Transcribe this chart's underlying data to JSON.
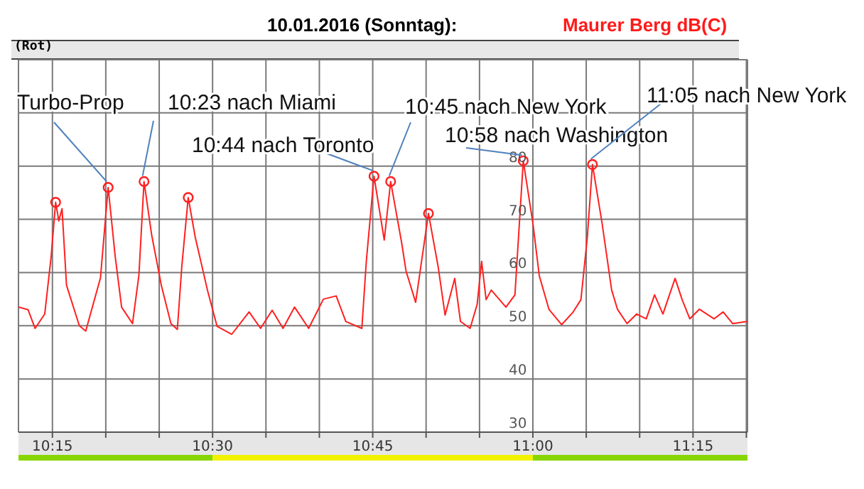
{
  "chart_data": {
    "type": "line",
    "title": "10.01.2016 (Sonntag):",
    "subtitle": "Maurer Berg dB(C)",
    "xlim": [
      10.197,
      11.335
    ],
    "xticks": [
      {
        "value": 10.25,
        "label": "10:15"
      },
      {
        "value": 10.3333,
        "label": null
      },
      {
        "value": 10.4167,
        "label": null
      },
      {
        "value": 10.5,
        "label": "10:30"
      },
      {
        "value": 10.5833,
        "label": null
      },
      {
        "value": 10.6667,
        "label": null
      },
      {
        "value": 10.75,
        "label": "10:45"
      },
      {
        "value": 10.8333,
        "label": null
      },
      {
        "value": 10.9167,
        "label": null
      },
      {
        "value": 11,
        "label": "11:00"
      },
      {
        "value": 11.0833,
        "label": null
      },
      {
        "value": 11.1667,
        "label": null
      },
      {
        "value": 11.25,
        "label": "11:15"
      },
      {
        "value": 11.3333,
        "label": null
      }
    ],
    "ylim": [
      30,
      100
    ],
    "yticks": [
      30,
      40,
      50,
      60,
      70,
      80,
      {
        "value": 90,
        "label": null
      },
      {
        "value": 100,
        "label": null
      }
    ],
    "grid": true,
    "legend": false,
    "marker": "none",
    "line_style": "solid",
    "series": [
      {
        "type": "line",
        "color": "#ff2020",
        "x": [
          10.197,
          10.212,
          10.223,
          10.238,
          10.248,
          10.255,
          10.26,
          10.265,
          10.272,
          10.292,
          10.302,
          10.325,
          10.337,
          10.348,
          10.358,
          10.375,
          10.385,
          10.393,
          10.405,
          10.42,
          10.435,
          10.445,
          10.452,
          10.462,
          10.473,
          10.492,
          10.507,
          10.53,
          10.557,
          10.575,
          10.593,
          10.61,
          10.628,
          10.65,
          10.673,
          10.693,
          10.708,
          10.733,
          10.74,
          10.752,
          10.768,
          10.778,
          10.795,
          10.802,
          10.817,
          10.837,
          10.852,
          10.863,
          10.878,
          10.887,
          10.902,
          10.913,
          10.92,
          10.927,
          10.935,
          10.958,
          10.972,
          10.985,
          11.0,
          11.01,
          11.025,
          11.045,
          11.063,
          11.075,
          11.085,
          11.093,
          11.108,
          11.123,
          11.132,
          11.147,
          11.162,
          11.177,
          11.19,
          11.203,
          11.222,
          11.233,
          11.245,
          11.26,
          11.283,
          11.297,
          11.312,
          11.335
        ],
        "values": [
          53.5,
          53,
          49.5,
          52.2,
          63,
          73.2,
          69.7,
          72,
          57.6,
          50,
          49,
          59,
          76,
          63,
          53.5,
          50.4,
          59.5,
          77.1,
          67,
          57.6,
          50.4,
          49.3,
          61.2,
          74.1,
          66.6,
          56.7,
          49.9,
          48.4,
          52.6,
          49.5,
          52.9,
          49.5,
          53.5,
          49.5,
          55,
          55.6,
          50.8,
          49.5,
          62.1,
          78.1,
          66.1,
          77.1,
          65.7,
          60.3,
          54.4,
          71.1,
          61.2,
          52,
          58.9,
          50.8,
          49.5,
          54,
          62.1,
          54.9,
          56.7,
          53.5,
          55.8,
          81,
          69.3,
          59.4,
          53.1,
          50.2,
          52.6,
          54.9,
          66.6,
          80.3,
          69.3,
          56.7,
          53.1,
          50.4,
          52.2,
          51.3,
          55.8,
          52.2,
          58.9,
          54.9,
          51.3,
          53.1,
          51.3,
          52.6,
          50.4,
          50.8
        ]
      },
      {
        "type": "scatter",
        "color": "#ff2020",
        "marker": "circle",
        "x": [
          10.255,
          10.337,
          10.393,
          10.462,
          10.752,
          10.778,
          10.837,
          10.985,
          11.093
        ],
        "values": [
          73.2,
          76,
          77.1,
          74.1,
          78.1,
          77.1,
          71.1,
          81,
          80.3
        ]
      }
    ],
    "annotations": [
      "(Rot)",
      {
        "text": "Turbo-Prop",
        "x": 10.337,
        "y": 76
      },
      {
        "text": "10:23 nach Miami",
        "x": 10.393,
        "y": 77.1
      },
      {
        "text": "10:44 nach Toronto",
        "x": 10.752,
        "y": 78.1
      },
      {
        "text": "10:45 nach New York",
        "x": 10.778,
        "y": 77.1
      },
      {
        "text": "10:58 nach Washington",
        "x": 10.985,
        "y": 81
      },
      {
        "text": "11:05 nach New York",
        "x": 11.093,
        "y": 80.3
      }
    ]
  }
}
